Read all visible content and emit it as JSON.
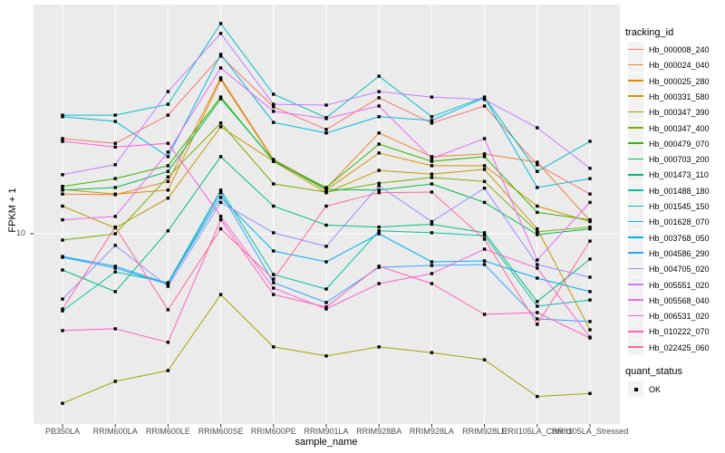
{
  "axes": {
    "y_title": "FPKM + 1",
    "y_tick_label": "10",
    "x_title": "sample_name"
  },
  "legend": {
    "tracking_title": "tracking_id",
    "quant_title": "quant_status",
    "quant_items": [
      {
        "label": "OK",
        "shape": "black-square-point"
      }
    ]
  },
  "colors": {
    "panel_bg": "#EBEBEB",
    "gridline": "#FFFFFF",
    "tick_mark": "#333333",
    "tick_label": "#4D4D4D",
    "legend_key_bg": "#F2F2F2",
    "point": "#000000"
  },
  "chart_data": {
    "type": "line",
    "title": "",
    "xlabel": "sample_name",
    "ylabel": "FPKM + 1",
    "y_scale": "log10",
    "y_ticks": [
      10
    ],
    "ylim_approx": [
      1.1,
      100
    ],
    "grid": "major-on",
    "legend_position": "right",
    "point_marker": "small-black-square",
    "categories": [
      "PB350LA",
      "RRIM600LA",
      "RRIM600LE",
      "RRIM600SE",
      "RRIM600PE",
      "RRIM901LA",
      "RRIM928BA",
      "RRIM928LA",
      "RRIM928LE",
      "RRII105LA_Control",
      "RRII105LA_Stressed"
    ],
    "series": [
      {
        "name": "Hb_000008_240",
        "color": "#F8766D",
        "values": [
          26.0,
          24.8,
          32.9,
          59.5,
          35.8,
          28.5,
          39.2,
          30.4,
          36.1,
          20.0,
          14.9
        ]
      },
      {
        "name": "Hb_000024_040",
        "color": "#EA8331",
        "values": [
          14.9,
          14.8,
          16.9,
          47.9,
          21.1,
          15.8,
          27.5,
          21.7,
          22.3,
          20.5,
          11.4
        ]
      },
      {
        "name": "Hb_000025_280",
        "color": "#D89000",
        "values": [
          15.6,
          14.9,
          15.5,
          47.0,
          20.9,
          15.5,
          22.5,
          19.8,
          19.8,
          13.2,
          11.3
        ]
      },
      {
        "name": "Hb_000331_580",
        "color": "#C09B00",
        "values": [
          13.2,
          10.6,
          14.3,
          29.3,
          20.7,
          15.1,
          18.9,
          18.2,
          19.1,
          10.5,
          3.81
        ]
      },
      {
        "name": "Hb_000347_390",
        "color": "#A3A500",
        "values": [
          1.82,
          2.27,
          2.53,
          5.43,
          3.21,
          2.93,
          3.21,
          3.03,
          2.82,
          1.95,
          2.01
        ]
      },
      {
        "name": "Hb_000347_400",
        "color": "#7CAE00",
        "values": [
          9.38,
          10.0,
          17.7,
          30.4,
          16.5,
          15.2,
          16.6,
          17.6,
          16.9,
          10.2,
          10.7
        ]
      },
      {
        "name": "Hb_000479_070",
        "color": "#39B600",
        "values": [
          16.1,
          17.4,
          19.8,
          39.5,
          20.7,
          15.9,
          24.6,
          20.7,
          21.7,
          12.4,
          11.5
        ]
      },
      {
        "name": "Hb_000703_200",
        "color": "#00BB4E",
        "values": [
          15.5,
          15.9,
          18.7,
          38.8,
          20.9,
          15.6,
          15.5,
          16.5,
          13.7,
          9.91,
          10.5
        ]
      },
      {
        "name": "Hb_001473_110",
        "color": "#00BF7D",
        "values": [
          6.95,
          5.59,
          10.3,
          21.7,
          13.2,
          10.9,
          10.7,
          11.0,
          10.1,
          5.06,
          7.75
        ]
      },
      {
        "name": "Hb_001488_180",
        "color": "#00C1A3",
        "values": [
          4.61,
          6.82,
          6.12,
          15.5,
          6.64,
          5.74,
          10.3,
          10.1,
          9.82,
          4.83,
          5.14
        ]
      },
      {
        "name": "Hb_001545_150",
        "color": "#00BFC4",
        "values": [
          32.9,
          32.9,
          36.7,
          82.6,
          40.6,
          32.1,
          48.7,
          32.4,
          39.5,
          18.7,
          25.3
        ]
      },
      {
        "name": "Hb_001628_070",
        "color": "#00BAE0",
        "values": [
          32.4,
          30.9,
          21.7,
          60.6,
          30.6,
          27.5,
          32.4,
          31.2,
          39.2,
          15.9,
          17.4
        ]
      },
      {
        "name": "Hb_003768_050",
        "color": "#00B0F6",
        "values": [
          7.96,
          7.21,
          6.06,
          14.4,
          8.41,
          7.54,
          10.0,
          7.54,
          7.61,
          6.4,
          5.59
        ]
      },
      {
        "name": "Hb_004586_290",
        "color": "#35A2FF",
        "values": [
          7.89,
          7.08,
          6.01,
          15.1,
          6.12,
          5.01,
          7.14,
          7.27,
          7.34,
          4.25,
          4.14
        ]
      },
      {
        "name": "Hb_004705_020",
        "color": "#9590FF",
        "values": [
          5.19,
          8.89,
          5.9,
          13.7,
          10.1,
          8.81,
          16.2,
          11.3,
          15.8,
          7.34,
          6.46
        ]
      },
      {
        "name": "Hb_005551_020",
        "color": "#C77CFF",
        "values": [
          18.1,
          20.0,
          41.7,
          74.8,
          36.7,
          36.4,
          41.7,
          39.5,
          38.5,
          29.0,
          19.3
        ]
      },
      {
        "name": "Hb_005568_040",
        "color": "#E76BF3",
        "values": [
          11.5,
          11.9,
          22.7,
          52.9,
          34.2,
          31.8,
          36.1,
          21.3,
          26.0,
          7.68,
          13.7
        ]
      },
      {
        "name": "Hb_006531_020",
        "color": "#FA62DB",
        "values": [
          25.3,
          23.9,
          24.8,
          11.9,
          5.79,
          4.7,
          6.06,
          6.7,
          8.57,
          7.08,
          3.54
        ]
      },
      {
        "name": "Hb_010222_070",
        "color": "#FF62BC",
        "values": [
          3.78,
          3.85,
          3.36,
          11.5,
          5.43,
          4.79,
          7.21,
          6.06,
          4.45,
          4.53,
          3.51
        ]
      },
      {
        "name": "Hb_022425_060",
        "color": "#FF6A98",
        "values": [
          4.7,
          10.7,
          4.66,
          10.5,
          6.34,
          13.2,
          15.1,
          15.2,
          9.47,
          4.03,
          9.29
        ]
      }
    ]
  }
}
